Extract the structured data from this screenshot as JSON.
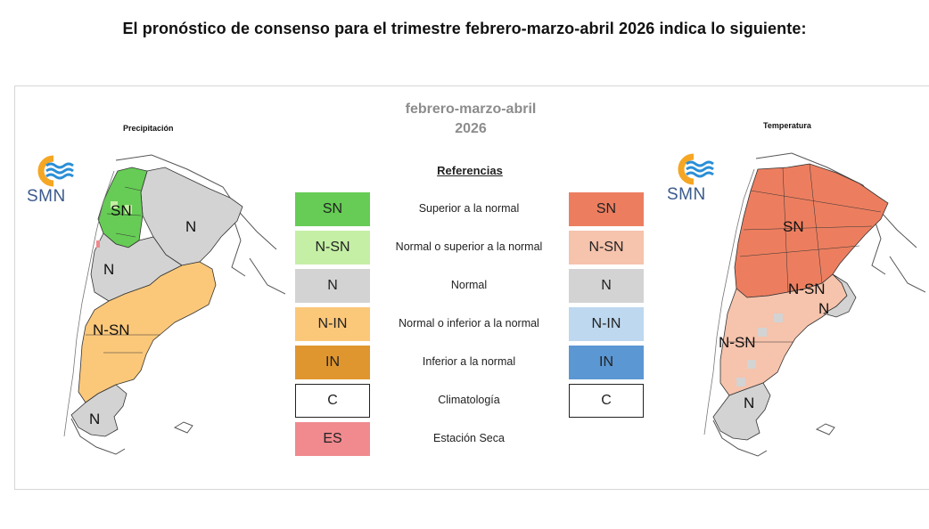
{
  "heading": "El pronóstico de consenso para el trimestre febrero-marzo-abril 2026 indica lo siguiente:",
  "period": {
    "line1": "febrero-marzo-abril",
    "line2": "2026"
  },
  "maps": {
    "precipitation": {
      "title": "Precipitación",
      "zones": [
        "SN",
        "N",
        "N",
        "N-SN",
        "N"
      ]
    },
    "temperature": {
      "title": "Temperatura",
      "zones": [
        "SN",
        "N-SN",
        "N",
        "N-SN",
        "N"
      ]
    }
  },
  "logo": {
    "text": "SMN"
  },
  "references": {
    "title": "Referencias",
    "items": [
      {
        "label": "Superior a la normal",
        "precip_code": "SN",
        "precip_color": "#66cc55",
        "temp_code": "SN",
        "temp_color": "#ec7e5f"
      },
      {
        "label": "Normal o superior a la normal",
        "precip_code": "N-SN",
        "precip_color": "#c5efa5",
        "temp_code": "N-SN",
        "temp_color": "#f6c3ac"
      },
      {
        "label": "Normal",
        "precip_code": "N",
        "precip_color": "#d3d3d3",
        "temp_code": "N",
        "temp_color": "#d3d3d3"
      },
      {
        "label": "Normal o inferior a la normal",
        "precip_code": "N-IN",
        "precip_color": "#fbc87a",
        "temp_code": "N-IN",
        "temp_color": "#bdd8ef"
      },
      {
        "label": "Inferior a la normal",
        "precip_code": "IN",
        "precip_color": "#e0962f",
        "temp_code": "IN",
        "temp_color": "#5b97d3"
      },
      {
        "label": "Climatología",
        "precip_code": "C",
        "precip_color": "#ffffff",
        "temp_code": "C",
        "temp_color": "#ffffff"
      },
      {
        "label": "Estación Seca",
        "precip_code": "ES",
        "precip_color": "#f08a8f"
      }
    ]
  }
}
